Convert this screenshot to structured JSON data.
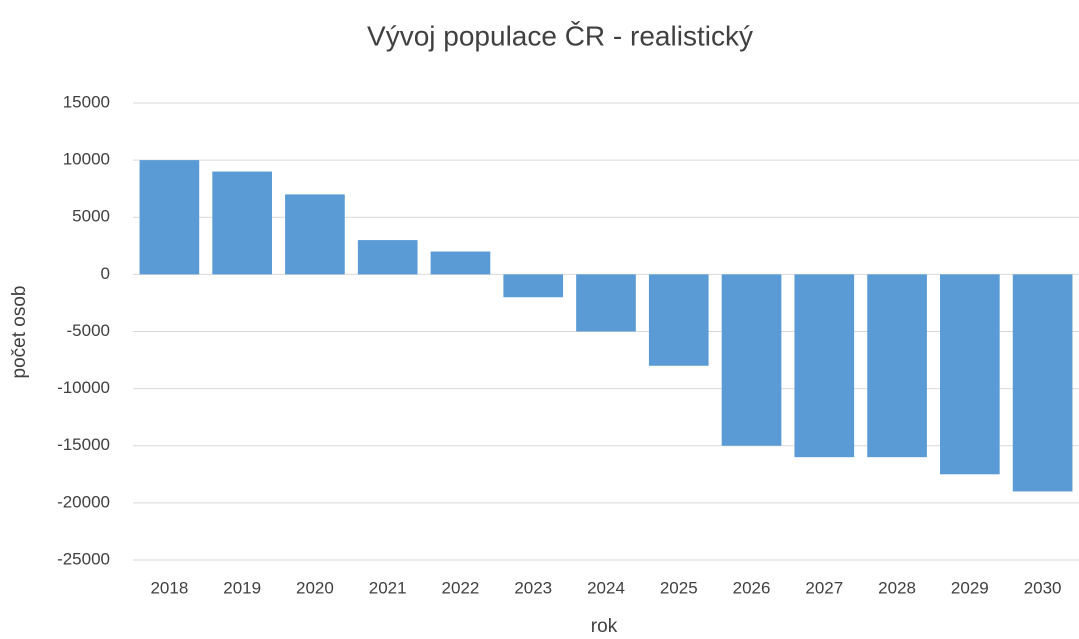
{
  "chart_data": {
    "type": "bar",
    "title": "Vývoj populace ČR - realistický",
    "x_label": "rok",
    "y_label": "počet osob",
    "categories": [
      "2018",
      "2019",
      "2020",
      "2021",
      "2022",
      "2023",
      "2024",
      "2025",
      "2026",
      "2027",
      "2028",
      "2029",
      "2030"
    ],
    "values": [
      10000,
      9000,
      7000,
      3000,
      2000,
      -2000,
      -5000,
      -8000,
      -15000,
      -16000,
      -16000,
      -17500,
      -19000
    ],
    "color": "#5b9bd5",
    "ylim": [
      -25000,
      15000
    ],
    "yticks": [
      -25000,
      -20000,
      -15000,
      -10000,
      -5000,
      0,
      5000,
      10000,
      15000
    ],
    "grid": true
  }
}
